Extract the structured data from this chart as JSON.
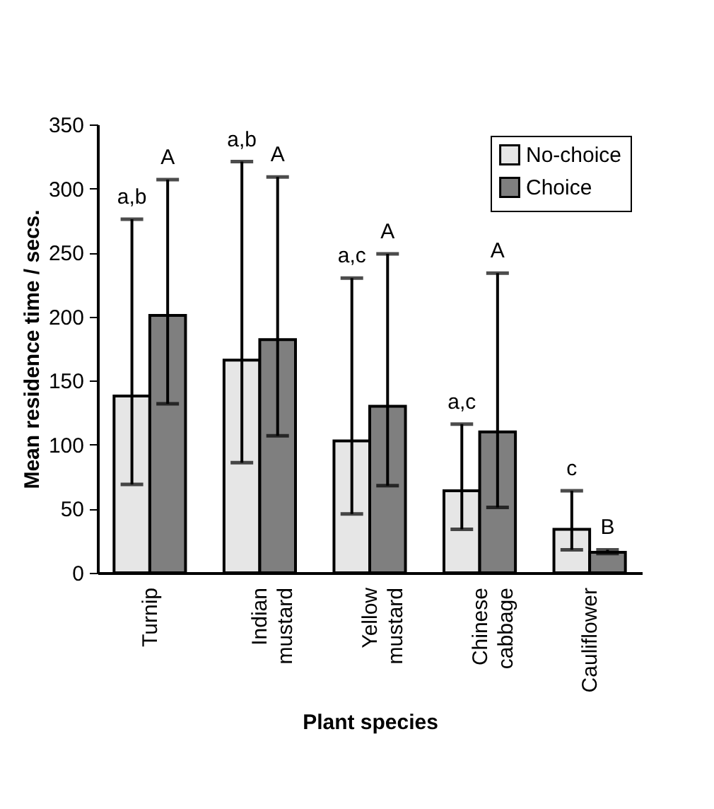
{
  "chart_data": {
    "type": "bar",
    "xlabel": "Plant species",
    "ylabel": "Mean residence time / secs.",
    "categories": [
      "Turnip",
      "Indian mustard",
      "Yellow mustard",
      "Chinese cabbage",
      "Cauliflower"
    ],
    "series": [
      {
        "name": "No-choice",
        "color": "#e6e6e6",
        "values": [
          138,
          166,
          103,
          64,
          34
        ],
        "errors": [
          [
            69,
            276
          ],
          [
            86,
            321
          ],
          [
            46,
            230
          ],
          [
            34,
            116
          ],
          [
            18,
            64
          ]
        ]
      },
      {
        "name": "Choice",
        "color": "#7f7f7f",
        "values": [
          201,
          182,
          130,
          110,
          16
        ],
        "errors": [
          [
            132,
            307
          ],
          [
            107,
            309
          ],
          [
            68,
            249
          ],
          [
            51,
            234
          ],
          [
            15,
            18
          ]
        ]
      }
    ],
    "ylim": [
      0,
      350
    ],
    "yticks": [
      0,
      50,
      100,
      150,
      200,
      250,
      300,
      350
    ],
    "grid": false,
    "legend": "top right",
    "annotations": [
      "a,b",
      "A",
      "a,b",
      "A",
      "a,c",
      "A",
      "a,c",
      "A",
      "c",
      "B"
    ]
  }
}
